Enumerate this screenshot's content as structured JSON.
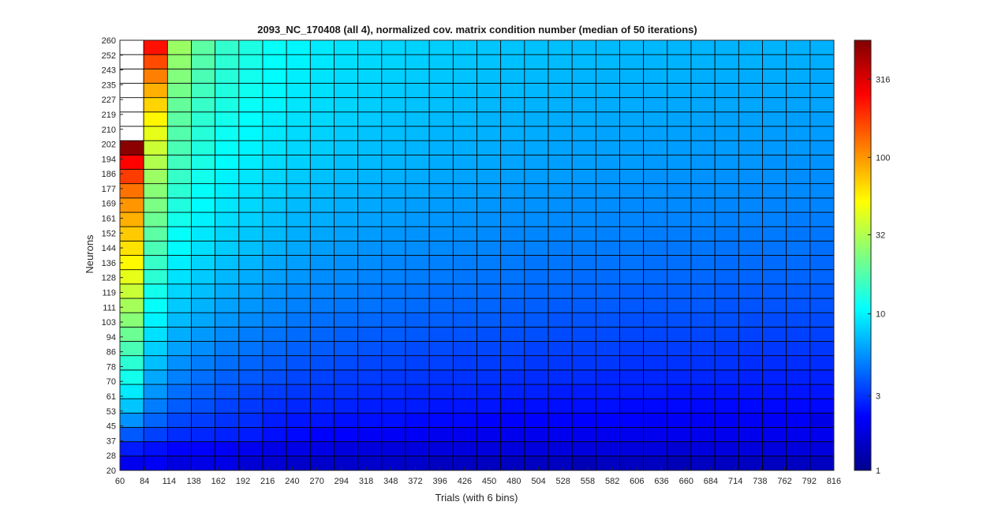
{
  "chart_data": {
    "type": "heatmap",
    "title": "2093_NC_170408 (all 4), normalized cov. matrix condition number (median of 50 iterations)",
    "xlabel": "Trials (with 6 bins)",
    "ylabel": "Neurons",
    "x_ticks": [
      "60",
      "84",
      "114",
      "138",
      "162",
      "192",
      "216",
      "240",
      "270",
      "294",
      "318",
      "348",
      "372",
      "396",
      "426",
      "450",
      "480",
      "504",
      "528",
      "558",
      "582",
      "606",
      "636",
      "660",
      "684",
      "714",
      "738",
      "762",
      "792",
      "816"
    ],
    "y_ticks": [
      "20",
      "28",
      "37",
      "45",
      "53",
      "61",
      "70",
      "78",
      "86",
      "94",
      "103",
      "111",
      "119",
      "128",
      "136",
      "144",
      "152",
      "161",
      "169",
      "177",
      "186",
      "194",
      "202",
      "210",
      "219",
      "227",
      "235",
      "243",
      "252",
      "260"
    ],
    "color_scale": "log",
    "colormap": "jet",
    "clim": [
      1,
      560
    ],
    "colorbar_ticks": [
      1,
      3,
      10,
      32,
      100,
      316
    ],
    "colorbar_tick_labels": [
      "1",
      "3",
      "10",
      "32",
      "100",
      "316"
    ],
    "missing_color": "#ffffff",
    "values": [
      [
        2.0,
        2.1,
        1.8,
        1.9,
        1.9,
        1.7,
        1.7,
        1.6,
        1.6,
        1.6,
        1.6,
        1.6,
        1.6,
        1.5,
        1.5,
        1.5,
        1.5,
        1.5,
        1.5,
        1.4,
        1.5,
        1.5,
        1.5,
        1.4,
        1.5,
        1.5,
        1.5,
        1.5,
        1.5,
        1.5
      ],
      [
        2.6,
        2.4,
        2.2,
        2.2,
        2.1,
        2.0,
        1.9,
        1.9,
        1.9,
        1.8,
        1.8,
        1.8,
        1.8,
        1.8,
        1.8,
        1.8,
        1.8,
        1.8,
        1.8,
        1.8,
        1.8,
        1.8,
        1.8,
        1.7,
        1.8,
        1.8,
        1.8,
        1.8,
        1.8,
        1.8
      ],
      [
        3.8,
        3.3,
        2.9,
        2.8,
        2.7,
        2.6,
        2.4,
        2.3,
        2.2,
        2.2,
        2.1,
        2.1,
        2.1,
        2.0,
        2.0,
        2.0,
        2.0,
        2.0,
        2.0,
        2.0,
        2.0,
        2.0,
        2.0,
        2.0,
        2.0,
        2.0,
        2.0,
        2.0,
        2.0,
        2.0
      ],
      [
        5.5,
        4.1,
        3.4,
        3.2,
        3.0,
        2.9,
        2.6,
        2.5,
        2.5,
        2.4,
        2.4,
        2.4,
        2.3,
        2.3,
        2.3,
        2.2,
        2.2,
        2.2,
        2.2,
        2.2,
        2.2,
        2.2,
        2.1,
        2.1,
        2.1,
        2.1,
        2.1,
        2.1,
        2.1,
        1.9
      ],
      [
        7.5,
        4.8,
        3.9,
        3.6,
        3.3,
        3.1,
        2.9,
        2.8,
        2.8,
        2.7,
        2.6,
        2.6,
        2.6,
        2.5,
        2.5,
        2.5,
        2.4,
        2.4,
        2.4,
        2.4,
        2.4,
        2.3,
        2.3,
        2.3,
        2.3,
        2.3,
        2.3,
        2.3,
        2.3,
        2.3
      ],
      [
        9.5,
        5.6,
        4.4,
        4.0,
        3.7,
        3.4,
        3.2,
        3.1,
        3.0,
        3.0,
        2.9,
        2.9,
        2.8,
        2.8,
        2.8,
        2.7,
        2.7,
        2.7,
        2.6,
        2.6,
        2.6,
        2.6,
        2.6,
        2.5,
        2.5,
        2.5,
        2.5,
        2.5,
        2.5,
        2.5
      ],
      [
        12,
        6.3,
        4.9,
        4.4,
        4.0,
        3.8,
        3.6,
        3.4,
        3.3,
        3.2,
        3.2,
        3.1,
        3.1,
        3.0,
        3.0,
        3.0,
        2.9,
        2.9,
        2.9,
        2.9,
        2.8,
        2.8,
        2.8,
        2.8,
        2.8,
        2.8,
        2.7,
        2.7,
        2.7,
        2.7
      ],
      [
        14,
        7.2,
        5.4,
        4.8,
        4.4,
        4.1,
        3.9,
        3.7,
        3.6,
        3.5,
        3.4,
        3.4,
        3.3,
        3.3,
        3.2,
        3.2,
        3.2,
        3.1,
        3.1,
        3.1,
        3.1,
        3.0,
        3.0,
        3.0,
        3.0,
        3.0,
        2.9,
        2.9,
        2.9,
        2.9
      ],
      [
        17,
        8.0,
        6.0,
        5.3,
        4.8,
        4.5,
        4.2,
        4.0,
        3.9,
        3.8,
        3.7,
        3.6,
        3.5,
        3.5,
        3.4,
        3.4,
        3.4,
        3.3,
        3.3,
        3.3,
        3.3,
        3.2,
        3.2,
        3.2,
        3.2,
        3.1,
        3.1,
        3.1,
        3.1,
        3.1
      ],
      [
        21,
        8.9,
        6.5,
        5.7,
        5.2,
        4.8,
        4.5,
        4.3,
        4.1,
        4.0,
        3.9,
        3.9,
        3.8,
        3.7,
        3.7,
        3.6,
        3.6,
        3.6,
        3.5,
        3.5,
        3.5,
        3.4,
        3.4,
        3.4,
        3.4,
        3.4,
        3.3,
        3.3,
        3.3,
        3.3
      ],
      [
        25,
        10,
        7.1,
        6.2,
        5.6,
        5.2,
        4.9,
        4.6,
        4.4,
        4.3,
        4.2,
        4.1,
        4.0,
        4.0,
        3.9,
        3.9,
        3.8,
        3.8,
        3.7,
        3.7,
        3.7,
        3.6,
        3.6,
        3.6,
        3.6,
        3.6,
        3.5,
        3.5,
        3.5,
        3.5
      ],
      [
        30,
        11,
        7.7,
        6.7,
        6.0,
        5.6,
        5.2,
        4.9,
        4.7,
        4.6,
        4.5,
        4.4,
        4.3,
        4.2,
        4.1,
        4.1,
        4.0,
        4.0,
        3.9,
        3.9,
        3.9,
        3.8,
        3.8,
        3.8,
        3.8,
        3.7,
        3.7,
        3.7,
        3.7,
        3.7
      ],
      [
        37,
        12,
        8.3,
        7.2,
        6.4,
        6.0,
        5.5,
        5.2,
        5.0,
        4.9,
        4.7,
        4.6,
        4.5,
        4.4,
        4.4,
        4.3,
        4.3,
        4.2,
        4.2,
        4.1,
        4.1,
        4.0,
        4.0,
        4.0,
        4.0,
        3.9,
        3.9,
        3.9,
        3.9,
        3.9
      ],
      [
        45,
        14,
        9.0,
        7.7,
        6.9,
        6.4,
        5.9,
        5.6,
        5.3,
        5.2,
        5.0,
        4.9,
        4.8,
        4.7,
        4.6,
        4.5,
        4.5,
        4.4,
        4.4,
        4.3,
        4.3,
        4.3,
        4.2,
        4.2,
        4.2,
        4.1,
        4.1,
        4.1,
        4.1,
        4.1
      ],
      [
        54,
        15,
        9.7,
        8.2,
        7.3,
        6.8,
        6.2,
        5.9,
        5.6,
        5.4,
        5.3,
        5.1,
        5.0,
        4.9,
        4.8,
        4.8,
        4.7,
        4.6,
        4.6,
        4.5,
        4.5,
        4.5,
        4.4,
        4.4,
        4.4,
        4.3,
        4.3,
        4.3,
        4.3,
        4.2
      ],
      [
        62,
        17,
        10.5,
        8.8,
        7.8,
        7.2,
        6.6,
        6.2,
        5.9,
        5.7,
        5.5,
        5.4,
        5.3,
        5.2,
        5.1,
        5.0,
        4.9,
        4.9,
        4.8,
        4.8,
        4.7,
        4.7,
        4.6,
        4.6,
        4.6,
        4.5,
        4.5,
        4.5,
        4.5,
        4.4
      ],
      [
        72,
        19,
        11,
        9.3,
        8.2,
        7.6,
        7.0,
        6.5,
        6.2,
        6.0,
        5.8,
        5.6,
        5.5,
        5.4,
        5.3,
        5.2,
        5.1,
        5.1,
        5.0,
        5.0,
        4.9,
        4.9,
        4.8,
        4.8,
        4.8,
        4.7,
        4.7,
        4.7,
        4.6,
        4.6
      ],
      [
        85,
        21,
        12,
        9.9,
        8.7,
        8.0,
        7.3,
        6.8,
        6.5,
        6.2,
        6.0,
        5.9,
        5.7,
        5.6,
        5.5,
        5.4,
        5.3,
        5.3,
        5.2,
        5.2,
        5.1,
        5.1,
        5.0,
        5.0,
        5.0,
        4.9,
        4.9,
        4.9,
        4.8,
        4.8
      ],
      [
        100,
        23,
        13,
        10.5,
        9.2,
        8.4,
        7.6,
        7.1,
        6.8,
        6.5,
        6.3,
        6.1,
        5.9,
        5.8,
        5.7,
        5.6,
        5.5,
        5.5,
        5.4,
        5.3,
        5.3,
        5.2,
        5.2,
        5.2,
        5.1,
        5.1,
        5.1,
        5.0,
        5.0,
        5.0
      ],
      [
        125,
        25,
        14,
        11,
        9.6,
        8.8,
        8.0,
        7.4,
        7.0,
        6.7,
        6.5,
        6.3,
        6.2,
        6.0,
        5.9,
        5.8,
        5.7,
        5.6,
        5.6,
        5.5,
        5.5,
        5.4,
        5.4,
        5.3,
        5.3,
        5.3,
        5.2,
        5.2,
        5.2,
        5.2
      ],
      [
        175,
        28,
        15,
        12,
        10,
        9.2,
        8.3,
        7.7,
        7.3,
        7.0,
        6.8,
        6.6,
        6.4,
        6.2,
        6.1,
        6.0,
        5.9,
        5.8,
        5.8,
        5.7,
        5.6,
        5.6,
        5.5,
        5.5,
        5.5,
        5.4,
        5.4,
        5.4,
        5.3,
        5.3
      ],
      [
        250,
        32,
        16,
        12.5,
        10.5,
        9.6,
        8.6,
        8.0,
        7.6,
        7.2,
        7.0,
        6.8,
        6.6,
        6.4,
        6.3,
        6.2,
        6.1,
        6.0,
        5.9,
        5.9,
        5.8,
        5.8,
        5.7,
        5.7,
        5.6,
        5.6,
        5.6,
        5.5,
        5.5,
        5.5
      ],
      [
        520,
        38,
        17,
        13,
        11,
        10,
        9.0,
        8.3,
        7.9,
        7.5,
        7.2,
        7.0,
        6.8,
        6.6,
        6.5,
        6.4,
        6.3,
        6.2,
        6.1,
        6.0,
        6.0,
        5.9,
        5.9,
        5.8,
        5.8,
        5.8,
        5.7,
        5.7,
        5.7,
        5.6
      ],
      [
        null,
        45,
        18,
        13.5,
        11.5,
        10.4,
        9.3,
        8.6,
        8.1,
        7.7,
        7.4,
        7.2,
        7.0,
        6.8,
        6.7,
        6.6,
        6.5,
        6.4,
        6.3,
        6.2,
        6.1,
        6.1,
        6.0,
        6.0,
        5.9,
        5.9,
        5.9,
        5.8,
        5.8,
        5.8
      ],
      [
        null,
        55,
        19,
        14,
        12,
        10.8,
        9.6,
        8.9,
        8.4,
        8.0,
        7.7,
        7.4,
        7.2,
        7.0,
        6.9,
        6.7,
        6.6,
        6.5,
        6.4,
        6.4,
        6.3,
        6.2,
        6.2,
        6.1,
        6.1,
        6.0,
        6.0,
        6.0,
        5.9,
        5.9
      ],
      [
        null,
        68,
        20,
        15,
        12.5,
        11.2,
        10,
        9.2,
        8.6,
        8.2,
        7.9,
        7.6,
        7.4,
        7.2,
        7.0,
        6.9,
        6.8,
        6.7,
        6.6,
        6.5,
        6.4,
        6.4,
        6.3,
        6.3,
        6.2,
        6.2,
        6.2,
        6.1,
        6.1,
        6.1
      ],
      [
        null,
        85,
        22,
        16,
        13,
        11.6,
        10.3,
        9.5,
        8.9,
        8.4,
        8.1,
        7.8,
        7.6,
        7.4,
        7.2,
        7.1,
        7.0,
        6.9,
        6.8,
        6.7,
        6.6,
        6.5,
        6.5,
        6.4,
        6.4,
        6.3,
        6.3,
        6.3,
        6.2,
        6.2
      ],
      [
        null,
        115,
        24,
        17,
        13.5,
        12,
        10.6,
        9.7,
        9.1,
        8.6,
        8.3,
        8.0,
        7.8,
        7.6,
        7.4,
        7.2,
        7.1,
        7.0,
        6.9,
        6.8,
        6.7,
        6.7,
        6.6,
        6.6,
        6.5,
        6.5,
        6.4,
        6.4,
        6.4,
        6.3
      ],
      [
        null,
        160,
        26,
        18,
        14,
        12.4,
        10.9,
        10,
        9.3,
        8.8,
        8.5,
        8.2,
        7.9,
        7.7,
        7.5,
        7.4,
        7.3,
        7.2,
        7.1,
        7.0,
        6.9,
        6.8,
        6.8,
        6.7,
        6.7,
        6.6,
        6.6,
        6.5,
        6.5,
        6.5
      ],
      [
        null,
        230,
        28,
        19,
        14.5,
        12.8,
        11.2,
        10.2,
        9.5,
        9.0,
        8.6,
        8.3,
        8.1,
        7.9,
        7.7,
        7.5,
        7.4,
        7.3,
        7.2,
        7.1,
        7.0,
        7.0,
        6.9,
        6.8,
        6.8,
        6.7,
        6.7,
        6.7,
        6.6,
        6.6
      ]
    ]
  }
}
